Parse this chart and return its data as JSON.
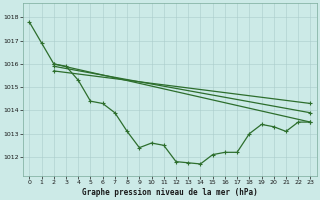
{
  "title": "Graphe pression niveau de la mer (hPa)",
  "bg_color": "#cceae7",
  "line_color": "#2d6e2d",
  "xlim": [
    -0.5,
    23.5
  ],
  "ylim": [
    1011.2,
    1018.6
  ],
  "yticks": [
    1012,
    1013,
    1014,
    1015,
    1016,
    1017,
    1018
  ],
  "xticks": [
    0,
    1,
    2,
    3,
    4,
    5,
    6,
    7,
    8,
    9,
    10,
    11,
    12,
    13,
    14,
    15,
    16,
    17,
    18,
    19,
    20,
    21,
    22,
    23
  ],
  "series1_x": [
    0,
    1,
    2,
    3,
    4,
    5,
    6,
    7,
    8,
    9,
    10,
    11,
    12,
    13,
    14,
    15,
    16,
    17,
    18,
    19,
    20,
    21,
    22,
    23
  ],
  "series1_y": [
    1017.8,
    1016.9,
    1016.0,
    1015.9,
    1015.3,
    1014.4,
    1014.3,
    1013.9,
    1013.1,
    1012.4,
    1012.6,
    1012.5,
    1011.8,
    1011.75,
    1011.7,
    1012.1,
    1012.2,
    1012.2,
    1013.0,
    1013.4,
    1013.3,
    1013.1,
    1013.5,
    1013.5
  ],
  "series2_x": [
    2,
    23
  ],
  "series2_y": [
    1016.0,
    1013.5
  ],
  "series3_x": [
    2,
    23
  ],
  "series3_y": [
    1015.9,
    1013.9
  ],
  "series4_x": [
    2,
    23
  ],
  "series4_y": [
    1015.7,
    1014.3
  ]
}
